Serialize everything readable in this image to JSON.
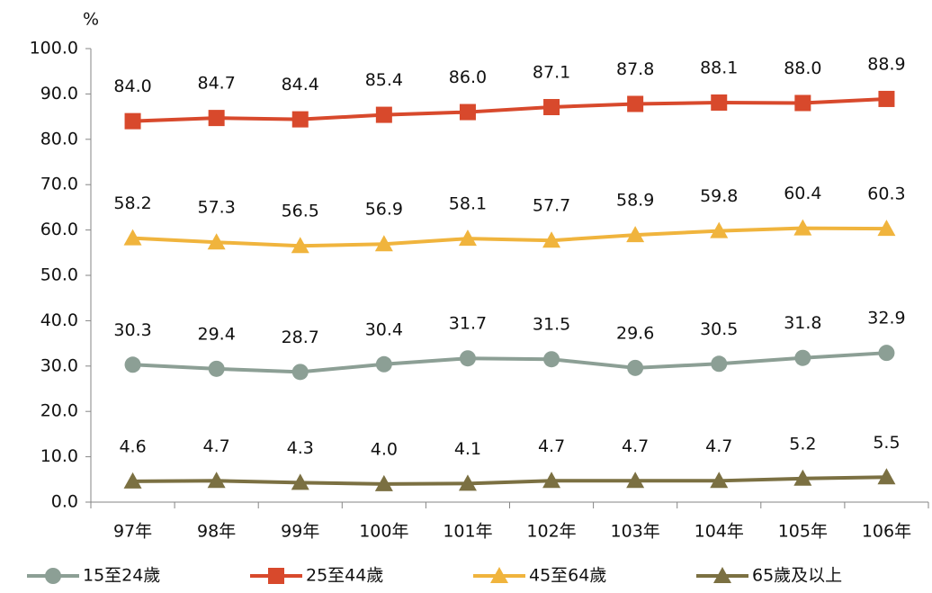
{
  "chart_data": {
    "type": "line",
    "y_label": "%",
    "categories": [
      "97年",
      "98年",
      "99年",
      "100年",
      "101年",
      "102年",
      "103年",
      "104年",
      "105年",
      "106年"
    ],
    "ylim": [
      0,
      100
    ],
    "yticks": [
      {
        "value": 0,
        "label": "0.0"
      },
      {
        "value": 10,
        "label": "10.0"
      },
      {
        "value": 20,
        "label": "20.0"
      },
      {
        "value": 30,
        "label": "30.0"
      },
      {
        "value": 40,
        "label": "40.0"
      },
      {
        "value": 50,
        "label": "50.0"
      },
      {
        "value": 60,
        "label": "60.0"
      },
      {
        "value": 70,
        "label": "70.0"
      },
      {
        "value": 80,
        "label": "80.0"
      },
      {
        "value": 90,
        "label": "90.0"
      },
      {
        "value": 100,
        "label": "100.0"
      }
    ],
    "grid": false,
    "legend": "bottom",
    "series": [
      {
        "name": "15至24歲",
        "color": "#8c9f95",
        "marker": "circle",
        "values": [
          30.3,
          29.4,
          28.7,
          30.4,
          31.7,
          31.5,
          29.6,
          30.5,
          31.8,
          32.9
        ],
        "value_labels": [
          "30.3",
          "29.4",
          "28.7",
          "30.4",
          "31.7",
          "31.5",
          "29.6",
          "30.5",
          "31.8",
          "32.9"
        ]
      },
      {
        "name": "25至44歲",
        "color": "#d8492c",
        "marker": "square",
        "values": [
          84,
          84.7,
          84.4,
          85.4,
          86,
          87.1,
          87.8,
          88.1,
          88,
          88.9
        ],
        "value_labels": [
          "84.0",
          "84.7",
          "84.4",
          "85.4",
          "86.0",
          "87.1",
          "87.8",
          "88.1",
          "88.0",
          "88.9"
        ]
      },
      {
        "name": "45至64歲",
        "color": "#f0b43d",
        "marker": "triangle",
        "values": [
          58.2,
          57.3,
          56.5,
          56.9,
          58.1,
          57.7,
          58.9,
          59.8,
          60.4,
          60.3
        ],
        "value_labels": [
          "58.2",
          "57.3",
          "56.5",
          "56.9",
          "58.1",
          "57.7",
          "58.9",
          "59.8",
          "60.4",
          "60.3"
        ]
      },
      {
        "name": "65歲及以上",
        "color": "#7b7042",
        "marker": "triangle",
        "values": [
          4.6,
          4.7,
          4.3,
          4,
          4.1,
          4.7,
          4.7,
          4.7,
          5.2,
          5.5
        ],
        "value_labels": [
          "4.6",
          "4.7",
          "4.3",
          "4.0",
          "4.1",
          "4.7",
          "4.7",
          "4.7",
          "5.2",
          "5.5"
        ]
      }
    ]
  }
}
